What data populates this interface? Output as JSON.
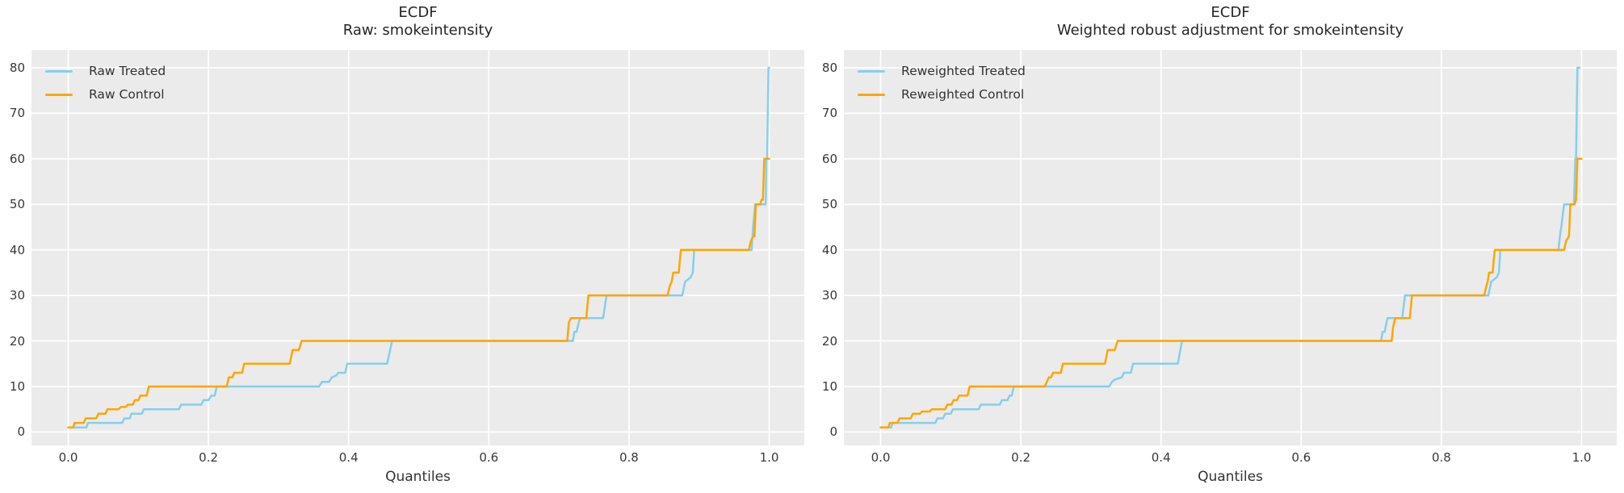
{
  "figure": {
    "background": "#ffffff",
    "axes_background": "#ebebeb",
    "grid_color": "#ffffff",
    "title_color": "#262626",
    "tick_color": "#383838",
    "treated_color": "#87CEEB",
    "control_color": "#FFA500"
  },
  "chart_data": [
    {
      "type": "line",
      "title_line1": "ECDF",
      "title_line2": "Raw: smokeintensity",
      "xlabel": "Quantiles",
      "grid": true,
      "legend_position": "upper left",
      "xlim": [
        -0.052,
        1.052
      ],
      "ylim": [
        -2.95,
        83.95
      ],
      "xtick_values": [
        0.0,
        0.2,
        0.4,
        0.6,
        0.8,
        1.0
      ],
      "xtick_labels": [
        "0.0",
        "0.2",
        "0.4",
        "0.6",
        "0.8",
        "1.0"
      ],
      "ytick_values": [
        0,
        10,
        20,
        30,
        40,
        50,
        60,
        70,
        80
      ],
      "ytick_labels": [
        "0",
        "10",
        "20",
        "30",
        "40",
        "50",
        "60",
        "70",
        "80"
      ],
      "series": [
        {
          "name": "Raw Treated",
          "color": "#87CEEB",
          "points": [
            [
              0,
              1
            ],
            [
              0.026,
              1
            ],
            [
              0.028,
              2
            ],
            [
              0.077,
              2
            ],
            [
              0.08,
              3
            ],
            [
              0.088,
              3
            ],
            [
              0.09,
              4
            ],
            [
              0.105,
              4
            ],
            [
              0.108,
              5
            ],
            [
              0.158,
              5
            ],
            [
              0.161,
              6
            ],
            [
              0.19,
              6
            ],
            [
              0.193,
              7
            ],
            [
              0.2,
              7
            ],
            [
              0.204,
              8
            ],
            [
              0.209,
              8
            ],
            [
              0.212,
              10
            ],
            [
              0.358,
              10
            ],
            [
              0.362,
              11
            ],
            [
              0.372,
              11
            ],
            [
              0.376,
              12
            ],
            [
              0.383,
              12.5
            ],
            [
              0.385,
              13
            ],
            [
              0.395,
              13
            ],
            [
              0.398,
              15
            ],
            [
              0.455,
              15
            ],
            [
              0.462,
              20
            ],
            [
              0.72,
              20
            ],
            [
              0.722,
              22
            ],
            [
              0.725,
              22
            ],
            [
              0.73,
              25
            ],
            [
              0.763,
              25
            ],
            [
              0.768,
              30
            ],
            [
              0.876,
              30
            ],
            [
              0.88,
              33
            ],
            [
              0.888,
              34
            ],
            [
              0.891,
              35
            ],
            [
              0.893,
              40
            ],
            [
              0.975,
              40
            ],
            [
              0.977,
              45
            ],
            [
              0.98,
              50
            ],
            [
              0.995,
              50
            ],
            [
              0.996,
              60
            ],
            [
              0.997,
              60
            ],
            [
              0.999,
              80
            ],
            [
              1.0,
              80
            ]
          ]
        },
        {
          "name": "Raw Control",
          "color": "#FFA500",
          "points": [
            [
              0,
              1
            ],
            [
              0.007,
              1
            ],
            [
              0.009,
              2
            ],
            [
              0.022,
              2
            ],
            [
              0.025,
              3
            ],
            [
              0.04,
              3
            ],
            [
              0.043,
              4
            ],
            [
              0.053,
              4
            ],
            [
              0.056,
              5
            ],
            [
              0.072,
              5
            ],
            [
              0.075,
              5.5
            ],
            [
              0.082,
              5.5
            ],
            [
              0.085,
              6
            ],
            [
              0.092,
              6
            ],
            [
              0.095,
              7
            ],
            [
              0.1,
              7
            ],
            [
              0.103,
              8
            ],
            [
              0.112,
              8
            ],
            [
              0.115,
              10
            ],
            [
              0.226,
              10
            ],
            [
              0.229,
              12
            ],
            [
              0.234,
              12
            ],
            [
              0.237,
              13
            ],
            [
              0.248,
              13
            ],
            [
              0.251,
              15
            ],
            [
              0.316,
              15
            ],
            [
              0.32,
              18
            ],
            [
              0.329,
              18
            ],
            [
              0.333,
              20
            ],
            [
              0.712,
              20
            ],
            [
              0.714,
              24
            ],
            [
              0.717,
              25
            ],
            [
              0.739,
              25
            ],
            [
              0.742,
              30
            ],
            [
              0.855,
              30
            ],
            [
              0.858,
              32
            ],
            [
              0.861,
              33
            ],
            [
              0.863,
              35
            ],
            [
              0.871,
              35
            ],
            [
              0.874,
              40
            ],
            [
              0.971,
              40
            ],
            [
              0.974,
              42
            ],
            [
              0.977,
              43
            ],
            [
              0.979,
              43
            ],
            [
              0.981,
              50
            ],
            [
              0.987,
              50
            ],
            [
              0.989,
              51
            ],
            [
              0.991,
              51
            ],
            [
              0.993,
              60
            ],
            [
              1.0,
              60
            ]
          ]
        }
      ]
    },
    {
      "type": "line",
      "title_line1": "ECDF",
      "title_line2": "Weighted robust adjustment for smokeintensity",
      "xlabel": "Quantiles",
      "grid": true,
      "legend_position": "upper left",
      "xlim": [
        -0.052,
        1.052
      ],
      "ylim": [
        -2.95,
        83.95
      ],
      "xtick_values": [
        0.0,
        0.2,
        0.4,
        0.6,
        0.8,
        1.0
      ],
      "xtick_labels": [
        "0.0",
        "0.2",
        "0.4",
        "0.6",
        "0.8",
        "1.0"
      ],
      "ytick_values": [
        0,
        10,
        20,
        30,
        40,
        50,
        60,
        70,
        80
      ],
      "ytick_labels": [
        "0",
        "10",
        "20",
        "30",
        "40",
        "50",
        "60",
        "70",
        "80"
      ],
      "series": [
        {
          "name": "Reweighted Treated",
          "color": "#87CEEB",
          "points": [
            [
              0,
              1
            ],
            [
              0.015,
              1
            ],
            [
              0.017,
              2
            ],
            [
              0.078,
              2
            ],
            [
              0.081,
              3
            ],
            [
              0.089,
              3
            ],
            [
              0.092,
              4
            ],
            [
              0.1,
              4
            ],
            [
              0.103,
              5
            ],
            [
              0.14,
              5
            ],
            [
              0.143,
              6
            ],
            [
              0.17,
              6
            ],
            [
              0.173,
              7
            ],
            [
              0.181,
              7
            ],
            [
              0.184,
              8
            ],
            [
              0.187,
              8
            ],
            [
              0.19,
              10
            ],
            [
              0.326,
              10
            ],
            [
              0.33,
              11
            ],
            [
              0.334,
              11.5
            ],
            [
              0.344,
              12
            ],
            [
              0.347,
              13
            ],
            [
              0.357,
              13
            ],
            [
              0.36,
              15
            ],
            [
              0.424,
              15
            ],
            [
              0.43,
              20
            ],
            [
              0.714,
              20
            ],
            [
              0.716,
              22
            ],
            [
              0.719,
              22
            ],
            [
              0.723,
              25
            ],
            [
              0.744,
              25
            ],
            [
              0.748,
              30
            ],
            [
              0.867,
              30
            ],
            [
              0.871,
              33
            ],
            [
              0.879,
              34
            ],
            [
              0.882,
              35
            ],
            [
              0.884,
              40
            ],
            [
              0.967,
              40
            ],
            [
              0.969,
              43
            ],
            [
              0.971,
              45
            ],
            [
              0.975,
              50
            ],
            [
              0.989,
              50
            ],
            [
              0.991,
              60
            ],
            [
              0.992,
              60
            ],
            [
              0.994,
              80
            ],
            [
              0.997,
              80
            ]
          ]
        },
        {
          "name": "Reweighted Control",
          "color": "#FFA500",
          "points": [
            [
              0,
              1
            ],
            [
              0.011,
              1
            ],
            [
              0.013,
              2
            ],
            [
              0.024,
              2
            ],
            [
              0.027,
              3
            ],
            [
              0.043,
              3
            ],
            [
              0.046,
              4
            ],
            [
              0.056,
              4
            ],
            [
              0.059,
              4.5
            ],
            [
              0.07,
              4.5
            ],
            [
              0.073,
              5
            ],
            [
              0.092,
              5
            ],
            [
              0.095,
              6
            ],
            [
              0.101,
              6
            ],
            [
              0.104,
              7
            ],
            [
              0.109,
              7
            ],
            [
              0.112,
              8
            ],
            [
              0.124,
              8
            ],
            [
              0.127,
              10
            ],
            [
              0.234,
              10
            ],
            [
              0.237,
              11
            ],
            [
              0.24,
              12
            ],
            [
              0.243,
              12
            ],
            [
              0.246,
              13
            ],
            [
              0.257,
              13
            ],
            [
              0.26,
              15
            ],
            [
              0.32,
              15
            ],
            [
              0.324,
              18
            ],
            [
              0.334,
              18
            ],
            [
              0.338,
              20
            ],
            [
              0.729,
              20
            ],
            [
              0.731,
              23
            ],
            [
              0.734,
              25
            ],
            [
              0.755,
              25
            ],
            [
              0.758,
              30
            ],
            [
              0.861,
              30
            ],
            [
              0.864,
              32
            ],
            [
              0.866,
              33
            ],
            [
              0.868,
              35
            ],
            [
              0.873,
              35
            ],
            [
              0.876,
              40
            ],
            [
              0.975,
              40
            ],
            [
              0.978,
              42
            ],
            [
              0.982,
              43
            ],
            [
              0.984,
              50
            ],
            [
              0.99,
              50
            ],
            [
              0.992,
              51
            ],
            [
              0.994,
              60
            ],
            [
              1.0,
              60
            ]
          ]
        }
      ]
    }
  ]
}
